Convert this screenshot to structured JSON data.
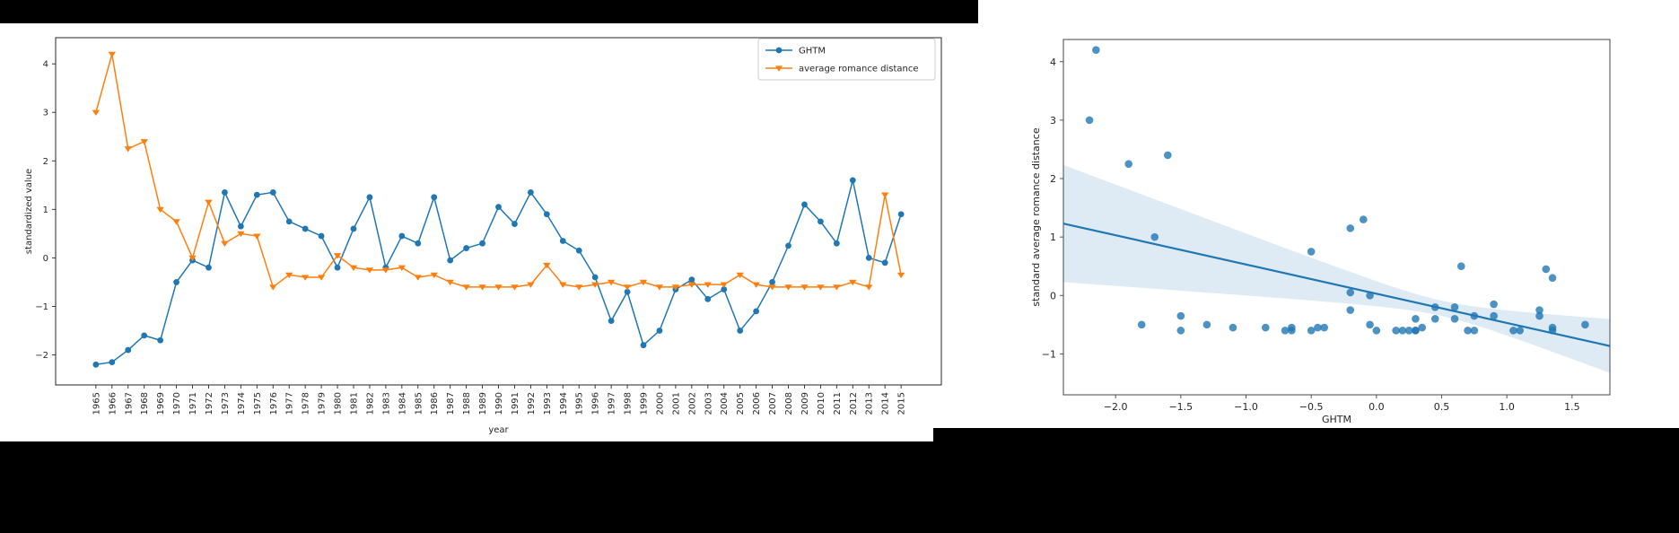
{
  "page": {
    "background": "#ffffff",
    "top_bar_color": "#000000",
    "bottom_bar_color": "#000000"
  },
  "chart_data": [
    {
      "type": "line",
      "title": "",
      "xlabel": "year",
      "ylabel": "standardized value",
      "grid": false,
      "legend_position": "upper right",
      "yticks": [
        -2,
        -1,
        0,
        1,
        2,
        3,
        4
      ],
      "ylim": [
        -2.62,
        4.54
      ],
      "categories": [
        1965,
        1966,
        1967,
        1968,
        1969,
        1970,
        1971,
        1972,
        1973,
        1974,
        1975,
        1976,
        1977,
        1978,
        1979,
        1980,
        1981,
        1982,
        1983,
        1984,
        1985,
        1986,
        1987,
        1988,
        1989,
        1990,
        1991,
        1992,
        1993,
        1994,
        1995,
        1996,
        1997,
        1998,
        1999,
        2000,
        2001,
        2002,
        2003,
        2004,
        2005,
        2006,
        2007,
        2008,
        2009,
        2010,
        2011,
        2012,
        2013,
        2014,
        2015
      ],
      "series": [
        {
          "name": "GHTM",
          "color": "#1f77b4",
          "marker": "circle",
          "values": [
            -2.2,
            -2.15,
            -1.9,
            -1.6,
            -1.7,
            -0.5,
            -0.05,
            -0.2,
            1.35,
            0.65,
            1.3,
            1.35,
            0.75,
            0.6,
            0.45,
            -0.2,
            0.6,
            1.25,
            -0.2,
            0.45,
            0.3,
            1.25,
            -0.05,
            0.2,
            0.3,
            1.05,
            0.7,
            1.35,
            0.9,
            0.35,
            0.15,
            -0.4,
            -1.3,
            -0.7,
            -1.8,
            -1.5,
            -0.65,
            -0.45,
            -0.85,
            -0.65,
            -1.5,
            -1.1,
            -0.5,
            0.25,
            1.1,
            0.75,
            0.3,
            1.6,
            0.0,
            -0.1,
            0.9
          ]
        },
        {
          "name": "average romance distance",
          "color": "#ff7f0e",
          "marker": "triangle-down",
          "values": [
            3.0,
            4.2,
            2.25,
            2.4,
            1.0,
            0.75,
            0.0,
            1.15,
            0.3,
            0.5,
            0.45,
            -0.6,
            -0.35,
            -0.4,
            -0.4,
            0.05,
            -0.2,
            -0.25,
            -0.25,
            -0.2,
            -0.4,
            -0.35,
            -0.5,
            -0.6,
            -0.6,
            -0.6,
            -0.6,
            -0.55,
            -0.15,
            -0.55,
            -0.6,
            -0.55,
            -0.5,
            -0.6,
            -0.5,
            -0.6,
            -0.6,
            -0.55,
            -0.55,
            -0.55,
            -0.35,
            -0.55,
            -0.6,
            -0.6,
            -0.6,
            -0.6,
            -0.6,
            -0.5,
            -0.6,
            1.3,
            -0.35
          ]
        }
      ]
    },
    {
      "type": "scatter",
      "title": "",
      "xlabel": "GHTM",
      "ylabel": "standard average romance distance",
      "grid": false,
      "point_color": "#1f77b4",
      "point_opacity": 0.8,
      "xticks": [
        -2.0,
        -1.5,
        -1.0,
        -0.5,
        0.0,
        0.5,
        1.0,
        1.5
      ],
      "yticks": [
        -1,
        0,
        1,
        2,
        3,
        4
      ],
      "xlim": [
        -2.4,
        1.79
      ],
      "ylim": [
        -1.7,
        4.38
      ],
      "x": [
        -2.2,
        -2.15,
        -1.9,
        -1.6,
        -1.7,
        -0.5,
        -0.05,
        -0.2,
        1.35,
        0.65,
        1.3,
        1.35,
        0.75,
        0.6,
        0.45,
        -0.2,
        0.6,
        1.25,
        -0.2,
        0.45,
        0.3,
        1.25,
        -0.05,
        0.2,
        0.3,
        1.05,
        0.7,
        1.35,
        0.9,
        0.35,
        0.15,
        -0.4,
        -1.3,
        -0.7,
        -1.8,
        -1.5,
        -0.65,
        -0.45,
        -0.85,
        -0.65,
        -1.5,
        -1.1,
        -0.5,
        0.25,
        1.1,
        0.75,
        0.3,
        1.6,
        0.0,
        -0.1,
        0.9
      ],
      "y": [
        3.0,
        4.2,
        2.25,
        2.4,
        1.0,
        0.75,
        0.0,
        1.15,
        0.3,
        0.5,
        0.45,
        -0.6,
        -0.35,
        -0.4,
        -0.4,
        0.05,
        -0.2,
        -0.25,
        -0.25,
        -0.2,
        -0.4,
        -0.35,
        -0.5,
        -0.6,
        -0.6,
        -0.6,
        -0.6,
        -0.55,
        -0.15,
        -0.55,
        -0.6,
        -0.55,
        -0.5,
        -0.6,
        -0.5,
        -0.6,
        -0.6,
        -0.55,
        -0.55,
        -0.55,
        -0.35,
        -0.55,
        -0.6,
        -0.6,
        -0.6,
        -0.6,
        -0.6,
        -0.5,
        -0.6,
        1.3,
        -0.35
      ],
      "regression": {
        "slope": -0.5,
        "intercept": 0.03,
        "line_color": "#1f77b4",
        "band_color": "#1f77b4",
        "band_opacity": 0.15,
        "band_center_x": 0.5,
        "band_min_halfwidth": 0.13,
        "band_spread": 0.1177
      }
    }
  ]
}
